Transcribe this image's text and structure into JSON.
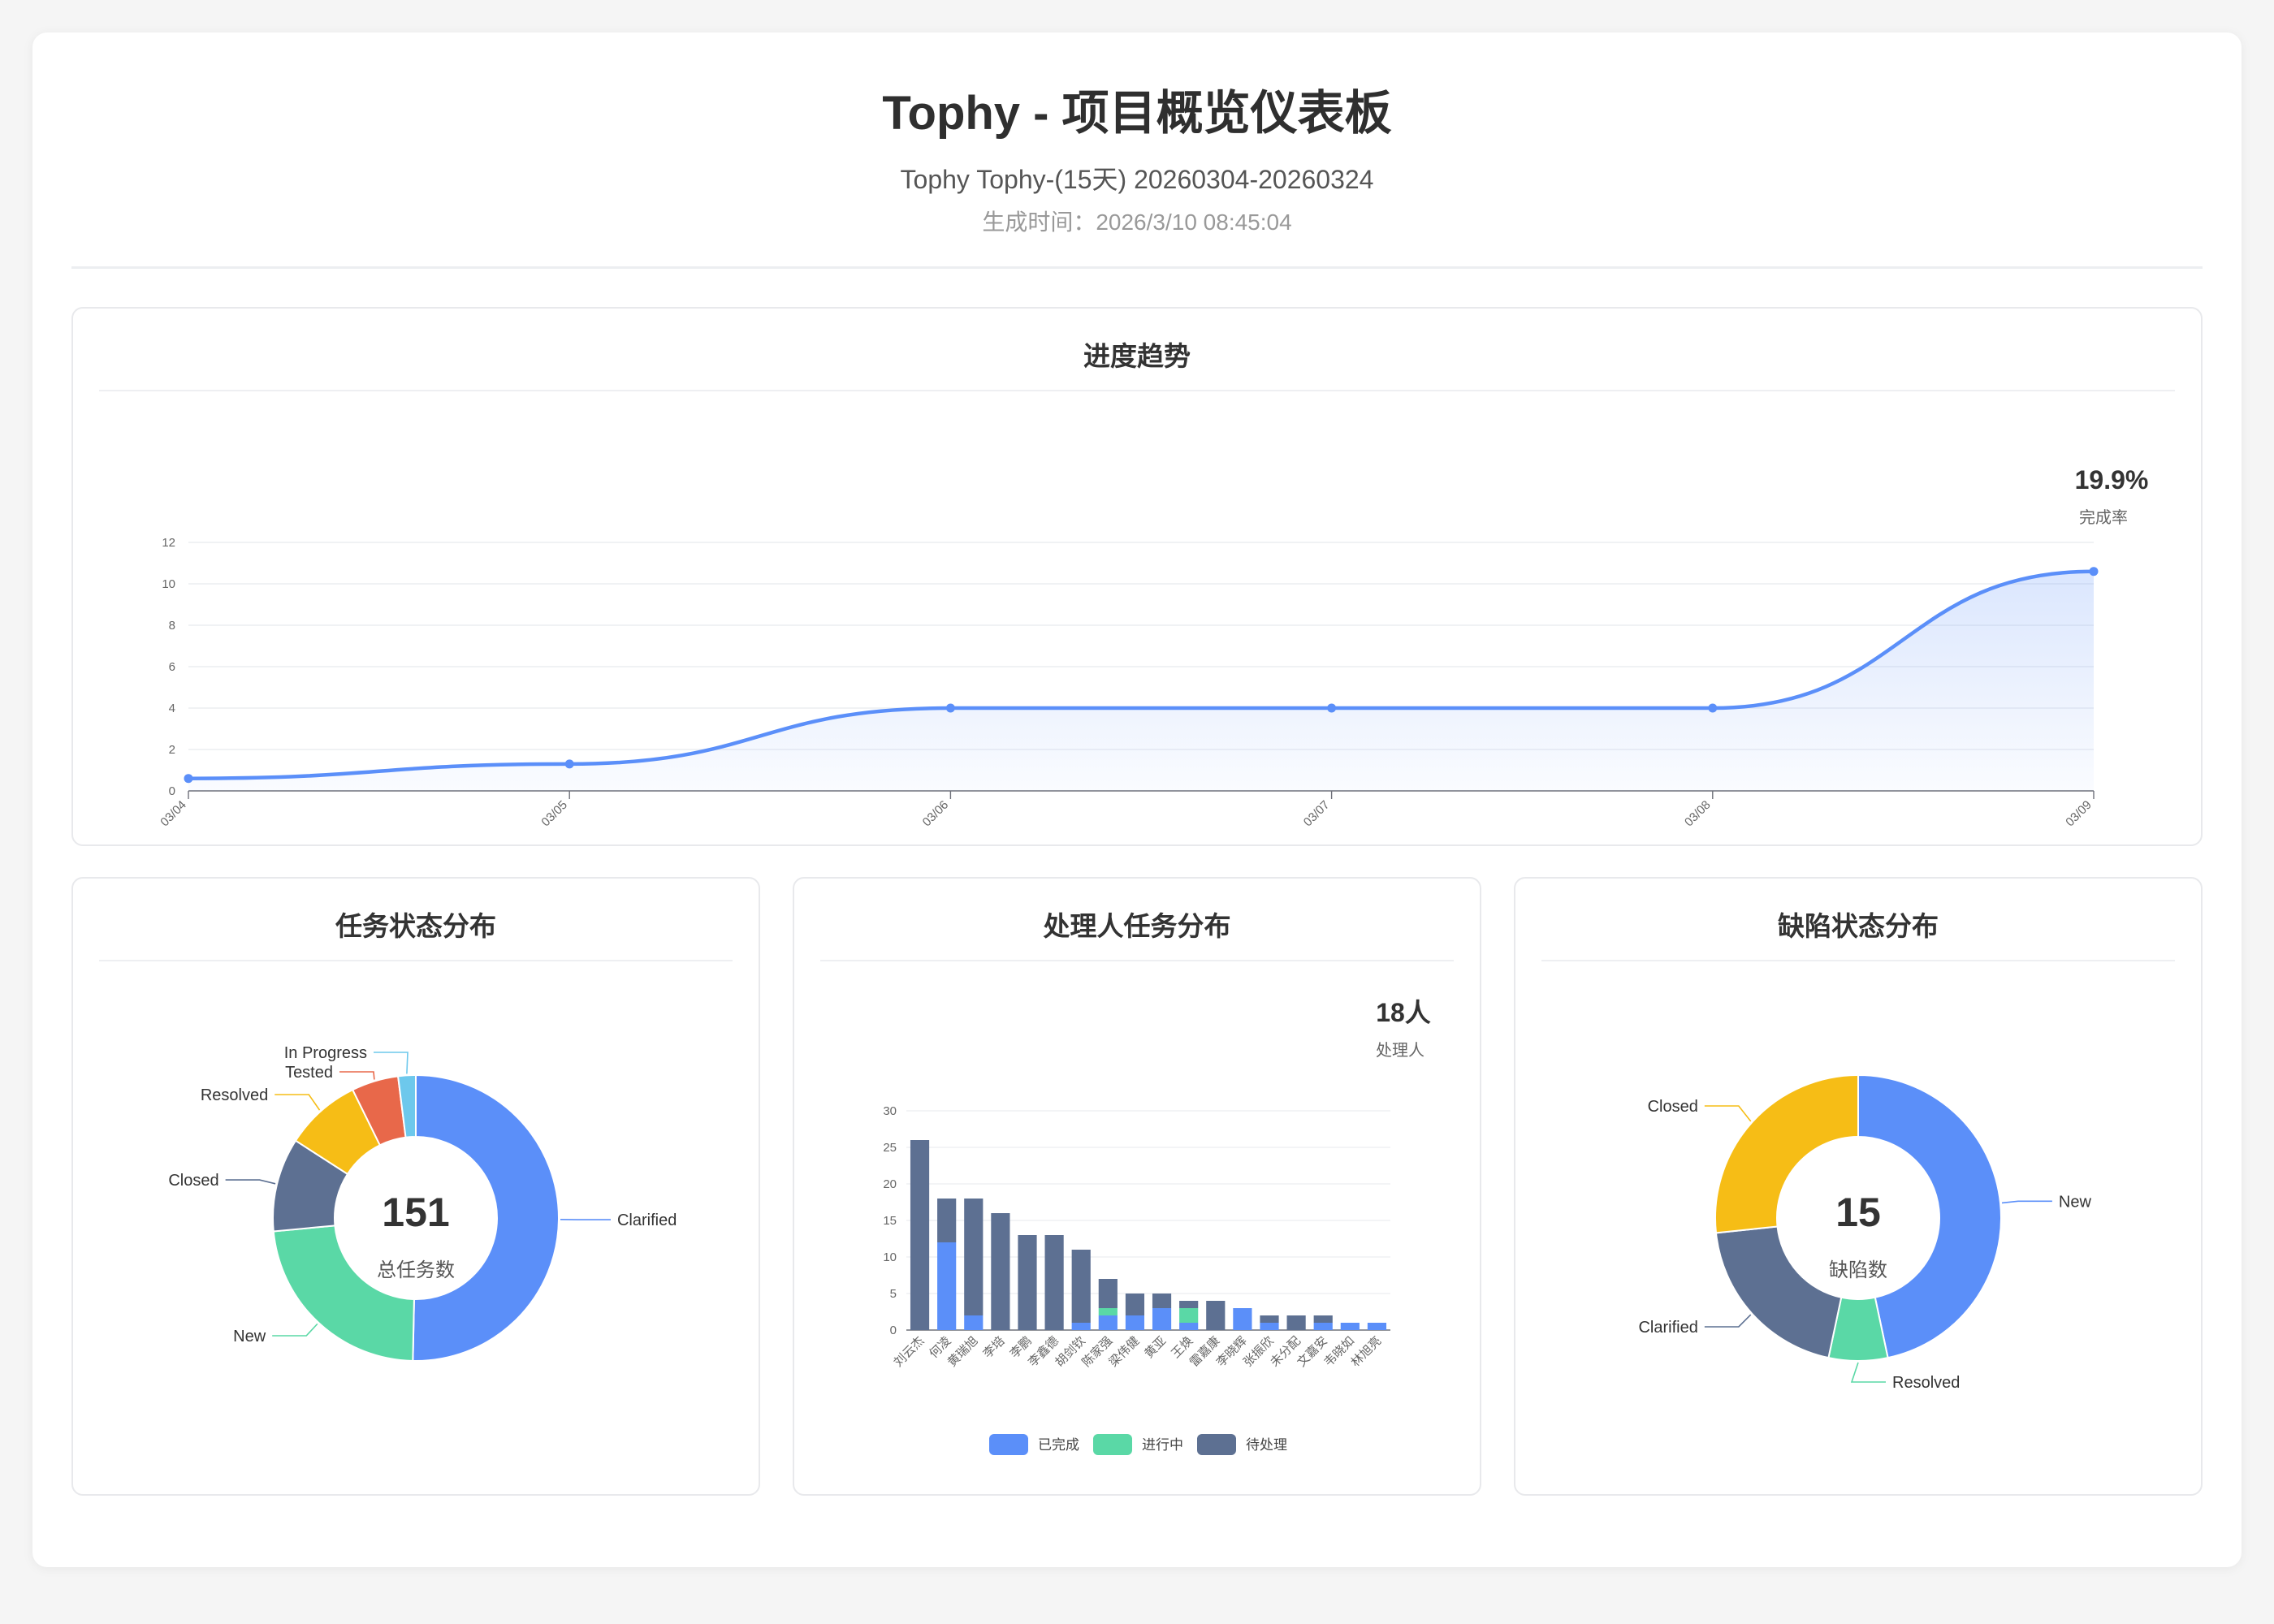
{
  "header": {
    "title": "Tophy - 项目概览仪表板",
    "subtitle": "Tophy Tophy-(15天) 20260304-20260324",
    "generated": "生成时间：2026/3/10 08:45:04"
  },
  "colors": {
    "blue": "#5b8ff9",
    "green": "#5ad8a6",
    "slate": "#5d7092",
    "yellow": "#f6bd16",
    "red": "#e8684a",
    "cyan": "#6dc8ec"
  },
  "progress": {
    "title": "进度趋势",
    "kpi_value": "19.9%",
    "kpi_label": "完成率"
  },
  "task_status": {
    "title": "任务状态分布",
    "center_value": "151",
    "center_label": "总任务数"
  },
  "assignee": {
    "title": "处理人任务分布",
    "kpi_value": "18人",
    "kpi_label": "处理人"
  },
  "defect_status": {
    "title": "缺陷状态分布",
    "center_value": "15",
    "center_label": "缺陷数"
  },
  "chart_data": [
    {
      "type": "area",
      "categories": [
        "03/04",
        "03/05",
        "03/06",
        "03/07",
        "03/08",
        "03/09"
      ],
      "values": [
        0.6,
        1.3,
        4,
        4,
        4,
        10.6
      ],
      "ylim": [
        0,
        12
      ],
      "yticks": [
        0,
        2,
        4,
        6,
        8,
        10,
        12
      ],
      "grid": true
    },
    {
      "type": "pie",
      "labels": [
        "Clarified",
        "New",
        "Closed",
        "Resolved",
        "Tested",
        "In Progress"
      ],
      "values": [
        76,
        35,
        16,
        13,
        8,
        3
      ],
      "colors": [
        "#5b8ff9",
        "#5ad8a6",
        "#5d7092",
        "#f6bd16",
        "#e8684a",
        "#6dc8ec"
      ]
    },
    {
      "type": "bar",
      "stacked": true,
      "categories": [
        "刘云杰",
        "何凌",
        "黄瑞旭",
        "李培",
        "李鹏",
        "李鑫德",
        "胡剑钦",
        "陈家强",
        "梁伟健",
        "黄亚",
        "王焕",
        "雷嘉康",
        "李晓辉",
        "张振欣",
        "未分配",
        "文嘉安",
        "韦晓如",
        "林旭亮"
      ],
      "series": [
        {
          "name": "已完成",
          "values": [
            0,
            12,
            2,
            0,
            0,
            0,
            1,
            2,
            2,
            3,
            1,
            0,
            3,
            1,
            0,
            1,
            1,
            1
          ]
        },
        {
          "name": "进行中",
          "values": [
            0,
            0,
            0,
            0,
            0,
            0,
            0,
            1,
            0,
            0,
            2,
            0,
            0,
            0,
            0,
            0,
            0,
            0
          ]
        },
        {
          "name": "待处理",
          "values": [
            26,
            6,
            16,
            16,
            13,
            13,
            10,
            4,
            3,
            2,
            1,
            4,
            0,
            1,
            2,
            1,
            0,
            0
          ]
        }
      ],
      "ylim": [
        0,
        30
      ],
      "yticks": [
        0,
        5,
        10,
        15,
        20,
        25,
        30
      ],
      "legend": "bottom"
    },
    {
      "type": "pie",
      "labels": [
        "New",
        "Resolved",
        "Clarified",
        "Closed"
      ],
      "values": [
        7,
        1,
        3,
        4
      ],
      "colors": [
        "#5b8ff9",
        "#5ad8a6",
        "#5d7092",
        "#f6bd16"
      ]
    }
  ]
}
